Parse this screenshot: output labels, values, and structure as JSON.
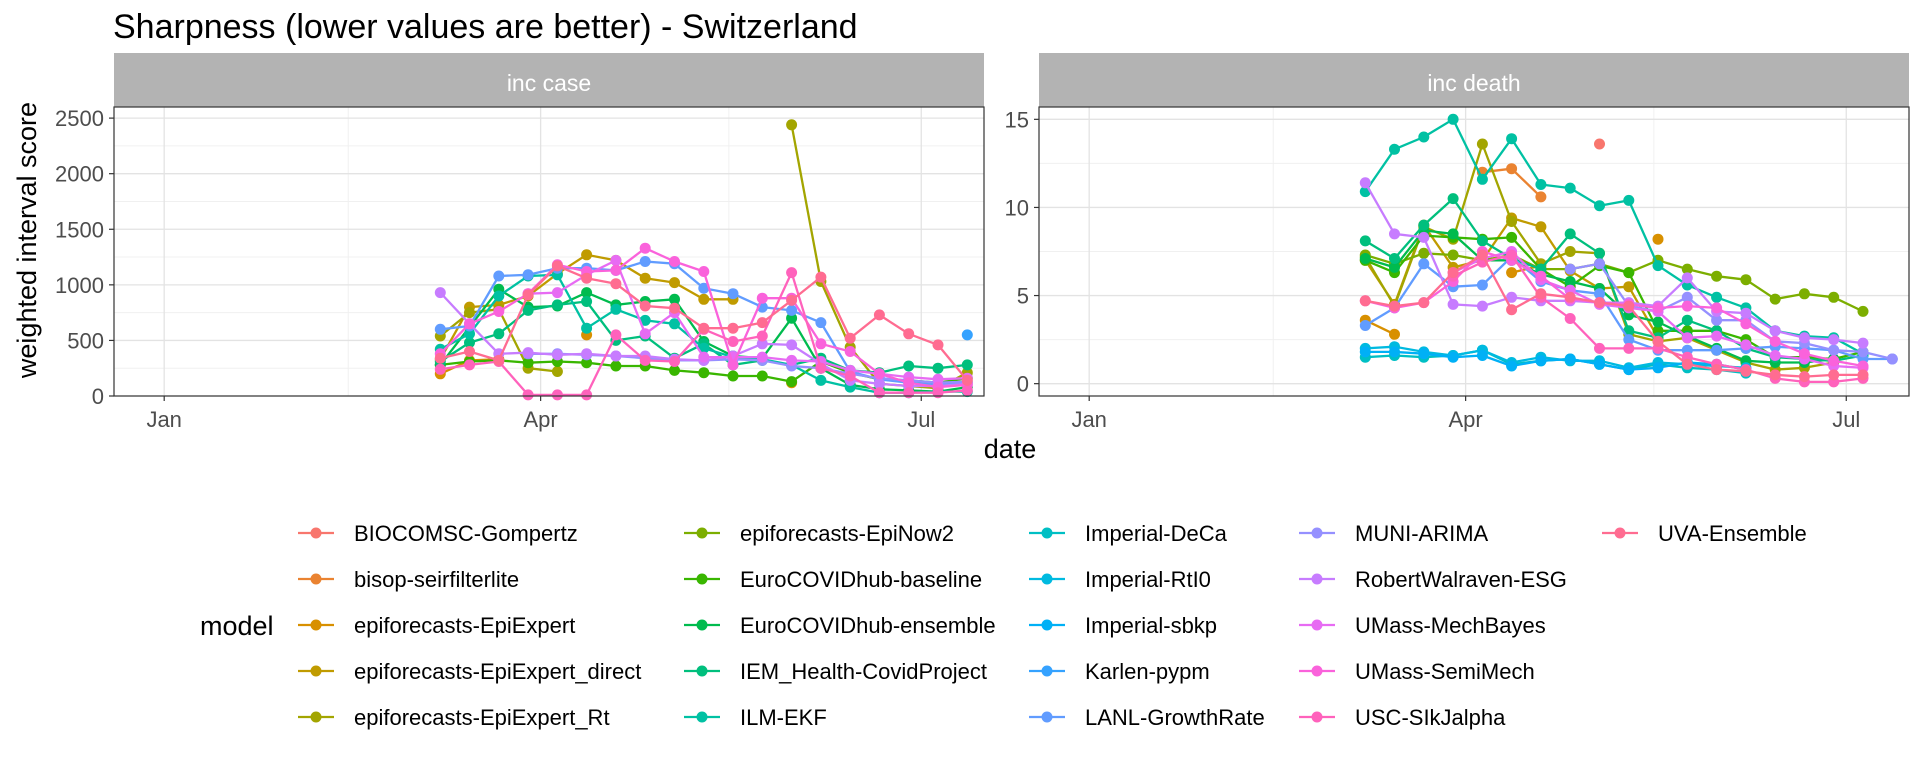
{
  "chart_data": {
    "type": "line",
    "title": "Sharpness (lower values are better) - Switzerland",
    "xlabel": "date",
    "ylabel": "weighted interval score",
    "legend_title": "model",
    "legend_position": "bottom",
    "grid": true,
    "x_tick_labels": [
      "Jan",
      "Apr",
      "Jul"
    ],
    "dates": [
      "2021-03-08",
      "2021-03-15",
      "2021-03-22",
      "2021-03-29",
      "2021-04-05",
      "2021-04-12",
      "2021-04-19",
      "2021-04-26",
      "2021-05-03",
      "2021-05-10",
      "2021-05-17",
      "2021-05-24",
      "2021-05-31",
      "2021-06-07",
      "2021-06-14",
      "2021-06-21",
      "2021-06-28",
      "2021-07-05",
      "2021-07-12"
    ],
    "models": [
      {
        "name": "BIOCOMSC-Gompertz",
        "color": "#F8766D"
      },
      {
        "name": "bisop-seirfilterlite",
        "color": "#EA8331"
      },
      {
        "name": "epiforecasts-EpiExpert",
        "color": "#D89000"
      },
      {
        "name": "epiforecasts-EpiExpert_direct",
        "color": "#C09B00"
      },
      {
        "name": "epiforecasts-EpiExpert_Rt",
        "color": "#A3A500"
      },
      {
        "name": "epiforecasts-EpiNow2",
        "color": "#7CAE00"
      },
      {
        "name": "EuroCOVIDhub-baseline",
        "color": "#39B600"
      },
      {
        "name": "EuroCOVIDhub-ensemble",
        "color": "#00BB4E"
      },
      {
        "name": "IEM_Health-CovidProject",
        "color": "#00BF7D"
      },
      {
        "name": "ILM-EKF",
        "color": "#00C1A3"
      },
      {
        "name": "Imperial-DeCa",
        "color": "#00BFC4"
      },
      {
        "name": "Imperial-RtI0",
        "color": "#00BAE0"
      },
      {
        "name": "Imperial-sbkp",
        "color": "#00B0F6"
      },
      {
        "name": "Karlen-pypm",
        "color": "#35A2FF"
      },
      {
        "name": "LANL-GrowthRate",
        "color": "#619CFF"
      },
      {
        "name": "MUNI-ARIMA",
        "color": "#9590FF"
      },
      {
        "name": "RobertWalraven-ESG",
        "color": "#C77CFF"
      },
      {
        "name": "UMass-MechBayes",
        "color": "#E76BF3"
      },
      {
        "name": "UMass-SemiMech",
        "color": "#FA62DB"
      },
      {
        "name": "USC-SIkJalpha",
        "color": "#FF62BC"
      },
      {
        "name": "UVA-Ensemble",
        "color": "#FF6C91"
      }
    ],
    "panels": [
      {
        "strip": "inc case",
        "y_range": [
          0,
          2600
        ],
        "y_ticks": [
          0,
          500,
          1000,
          1500,
          2000,
          2500
        ],
        "series": [
          {
            "model": "epiforecasts-EpiExpert",
            "values": [
              200,
              320,
              330,
              null,
              null,
              550,
              null,
              null,
              null,
              null,
              null,
              null,
              120,
              null,
              null,
              null,
              null,
              null,
              null
            ]
          },
          {
            "model": "epiforecasts-EpiExpert_direct",
            "values": [
              330,
              800,
              820,
              900,
              1100,
              1270,
              1220,
              1060,
              1020,
              870,
              870,
              null,
              null,
              null,
              null,
              null,
              null,
              null,
              null
            ]
          },
          {
            "model": "epiforecasts-EpiExpert_Rt",
            "values": [
              540,
              750,
              780,
              250,
              220,
              null,
              null,
              null,
              null,
              null,
              null,
              null,
              2440,
              1030,
              440,
              110,
              90,
              70,
              210
            ]
          },
          {
            "model": "EuroCOVIDhub-baseline",
            "values": [
              280,
              310,
              320,
              300,
              310,
              300,
              270,
              270,
              230,
              210,
              180,
              180,
              130,
              310,
              210,
              150,
              140,
              120,
              160
            ]
          },
          {
            "model": "EuroCOVIDhub-ensemble",
            "values": [
              280,
              620,
              960,
              800,
              810,
              930,
              820,
              850,
              870,
              490,
              360,
              340,
              700,
              250,
              100,
              60,
              50,
              40,
              80
            ]
          },
          {
            "model": "IEM_Health-CovidProject",
            "values": [
              310,
              480,
              560,
              770,
              820,
              850,
              500,
              540,
              340,
              470,
              280,
              320,
              280,
              340,
              230,
              210,
              270,
              250,
              280
            ]
          },
          {
            "model": "ILM-EKF",
            "values": [
              420,
              560,
              900,
              1080,
              1090,
              610,
              780,
              680,
              650,
              430,
              350,
              330,
              280,
              140,
              80,
              30,
              30,
              40,
              40
            ]
          },
          {
            "model": "Imperial-RtI0",
            "values": [
              null,
              null,
              null,
              null,
              null,
              null,
              null,
              null,
              null,
              null,
              null,
              null,
              null,
              null,
              null,
              null,
              null,
              null,
              null
            ]
          },
          {
            "model": "Karlen-pypm",
            "values": [
              null,
              null,
              null,
              null,
              null,
              null,
              null,
              null,
              null,
              null,
              null,
              null,
              null,
              null,
              null,
              null,
              null,
              null,
              550
            ]
          },
          {
            "model": "LANL-GrowthRate",
            "values": [
              600,
              630,
              1080,
              1090,
              1150,
              1150,
              1130,
              1210,
              1190,
              970,
              920,
              800,
              770,
              660,
              220,
              150,
              120,
              100,
              120
            ]
          },
          {
            "model": "MUNI-ARIMA",
            "values": [
              null,
              null,
              null,
              380,
              380,
              370,
              360,
              340,
              320,
              320,
              330,
              320,
              270,
              250,
              200,
              160,
              140,
              120,
              130
            ]
          },
          {
            "model": "RobertWalraven-ESG",
            "values": [
              930,
              650,
              380,
              390,
              370,
              380,
              360,
              360,
              330,
              320,
              360,
              470,
              460,
              290,
              140,
              110,
              90,
              90,
              110
            ]
          },
          {
            "model": "UMass-MechBayes",
            "values": [
              null,
              null,
              null,
              920,
              930,
              1090,
              1220,
              560,
              750,
              350,
              350,
              350,
              320,
              310,
              230,
              200,
              170,
              150,
              160
            ]
          },
          {
            "model": "UMass-SemiMech",
            "values": [
              380,
              650,
              760,
              920,
              1180,
              1120,
              1130,
              1330,
              1210,
              1120,
              280,
              880,
              880,
              470,
              400,
              200,
              120,
              80,
              100
            ]
          },
          {
            "model": "USC-SIkJalpha",
            "values": [
              240,
              280,
              310,
              10,
              10,
              10,
              550,
              320,
              310,
              600,
              490,
              540,
              1110,
              250,
              180,
              30,
              30,
              30,
              50
            ]
          },
          {
            "model": "UVA-Ensemble",
            "values": [
              340,
              400,
              320,
              910,
              1170,
              1060,
              1010,
              810,
              790,
              610,
              610,
              660,
              860,
              1070,
              520,
              730,
              560,
              460,
              140
            ]
          }
        ]
      },
      {
        "strip": "inc death",
        "y_range": [
          -0.7,
          15.7
        ],
        "y_ticks": [
          0,
          5,
          10,
          15
        ],
        "series": [
          {
            "model": "BIOCOMSC-Gompertz",
            "values": [
              null,
              null,
              null,
              null,
              null,
              null,
              null,
              null,
              13.6,
              null,
              null,
              null,
              null,
              null,
              null,
              null,
              null,
              null,
              null
            ]
          },
          {
            "model": "bisop-seirfilterlite",
            "values": [
              null,
              null,
              null,
              null,
              12.0,
              12.2,
              10.6,
              null,
              null,
              null,
              null,
              null,
              null,
              null,
              null,
              null,
              null,
              null,
              null
            ]
          },
          {
            "model": "epiforecasts-EpiExpert",
            "values": [
              3.6,
              2.8,
              null,
              null,
              null,
              6.3,
              6.7,
              null,
              null,
              null,
              8.2,
              null,
              null,
              null,
              null,
              null,
              null,
              null,
              null
            ]
          },
          {
            "model": "epiforecasts-EpiExpert_direct",
            "values": [
              7.0,
              4.5,
              9.0,
              6.6,
              7.0,
              9.4,
              8.9,
              6.4,
              5.4,
              5.5,
              2.6,
              null,
              null,
              null,
              null,
              null,
              null,
              null,
              null
            ]
          },
          {
            "model": "epiforecasts-EpiExpert_Rt",
            "values": [
              7.2,
              4.4,
              8.9,
              8.2,
              13.6,
              9.2,
              6.8,
              7.5,
              7.4,
              2.8,
              2.4,
              2.6,
              1.9,
              1.2,
              0.8,
              0.9,
              1.2,
              null,
              null
            ]
          },
          {
            "model": "epiforecasts-EpiNow2",
            "values": [
              7.3,
              6.8,
              7.4,
              7.3,
              7.0,
              7.3,
              6.5,
              6.5,
              6.8,
              6.3,
              7.0,
              6.5,
              6.1,
              5.9,
              4.8,
              5.1,
              4.9,
              4.1,
              null
            ]
          },
          {
            "model": "EuroCOVIDhub-baseline",
            "values": [
              7.0,
              6.3,
              8.4,
              8.3,
              8.2,
              8.3,
              6.5,
              5.5,
              6.7,
              6.3,
              3.0,
              3.0,
              3.0,
              2.5,
              1.5,
              1.5,
              1.4,
              1.8,
              null
            ]
          },
          {
            "model": "EuroCOVIDhub-ensemble",
            "values": [
              7.1,
              6.6,
              8.7,
              8.5,
              7.0,
              7.0,
              6.2,
              5.8,
              5.4,
              3.9,
              3.5,
              2.7,
              2.0,
              1.3,
              1.2,
              1.2,
              1.4,
              null,
              null
            ]
          },
          {
            "model": "IEM_Health-CovidProject",
            "values": [
              8.1,
              7.1,
              9.0,
              10.5,
              8.1,
              7.1,
              6.5,
              8.5,
              7.4,
              3.0,
              2.6,
              3.6,
              3.0,
              2.0,
              1.5,
              1.4,
              1.3,
              1.6,
              null
            ]
          },
          {
            "model": "ILM-EKF",
            "values": [
              10.9,
              13.3,
              14.0,
              15.0,
              11.6,
              13.9,
              11.3,
              11.1,
              10.1,
              10.4,
              6.7,
              5.6,
              4.9,
              4.3,
              3.0,
              2.7,
              2.6,
              1.7,
              null
            ]
          },
          {
            "model": "Imperial-DeCa",
            "values": [
              1.5,
              1.6,
              1.5,
              1.6,
              1.9,
              1.1,
              1.3,
              1.4,
              1.1,
              0.8,
              1.1,
              0.9,
              0.8,
              0.6,
              null,
              null,
              null,
              null,
              null
            ]
          },
          {
            "model": "Imperial-RtI0",
            "values": [
              2.0,
              2.1,
              1.8,
              1.6,
              1.9,
              1.2,
              1.5,
              1.3,
              1.3,
              0.9,
              1.2,
              1.1,
              1.0,
              0.9,
              null,
              null,
              null,
              null,
              null
            ]
          },
          {
            "model": "Imperial-sbkp",
            "values": [
              1.8,
              1.8,
              1.7,
              1.5,
              1.6,
              1.0,
              1.3,
              1.4,
              1.1,
              0.8,
              0.9,
              1.2,
              1.1,
              0.8,
              null,
              null,
              null,
              null,
              null
            ]
          },
          {
            "model": "LANL-GrowthRate",
            "values": [
              3.3,
              4.3,
              6.8,
              5.5,
              5.6,
              7.2,
              5.8,
              5.3,
              5.1,
              2.5,
              1.9,
              1.9,
              1.9,
              2.0,
              2.1,
              2.0,
              1.9,
              1.4,
              1.4
            ]
          },
          {
            "model": "MUNI-ARIMA",
            "values": [
              null,
              null,
              null,
              null,
              null,
              null,
              null,
              6.5,
              6.8,
              4.4,
              4.1,
              4.9,
              3.6,
              3.6,
              2.4,
              2.3,
              1.9,
              1.8,
              1.4
            ]
          },
          {
            "model": "RobertWalraven-ESG",
            "values": [
              11.4,
              8.5,
              8.3,
              4.5,
              4.4,
              4.9,
              4.7,
              4.7,
              4.6,
              4.6,
              4.4,
              6.0,
              4.1,
              4.0,
              3.0,
              2.6,
              2.5,
              2.3,
              null
            ]
          },
          {
            "model": "UMass-MechBayes",
            "values": [
              null,
              null,
              null,
              6.3,
              7.1,
              7.5,
              5.9,
              5.3,
              4.5,
              4.3,
              4.1,
              2.6,
              2.7,
              2.2,
              1.6,
              1.4,
              1.0,
              0.9,
              null
            ]
          },
          {
            "model": "UMass-SemiMech",
            "values": [
              4.7,
              4.3,
              4.6,
              5.8,
              7.5,
              7.0,
              6.1,
              4.8,
              4.6,
              4.5,
              4.3,
              4.4,
              4.3,
              3.4,
              2.4,
              1.7,
              1.3,
              1.0,
              null
            ]
          },
          {
            "model": "USC-SIkJalpha",
            "values": [
              null,
              null,
              null,
              6.1,
              6.9,
              7.3,
              4.9,
              3.7,
              2.0,
              2.0,
              2.0,
              1.5,
              1.1,
              0.8,
              0.3,
              0.1,
              0.1,
              0.3,
              null
            ]
          },
          {
            "model": "UVA-Ensemble",
            "values": [
              4.7,
              4.4,
              4.6,
              6.3,
              7.3,
              4.2,
              5.1,
              4.9,
              4.6,
              4.4,
              2.4,
              1.1,
              0.8,
              0.7,
              0.5,
              0.4,
              0.5,
              0.5,
              null
            ]
          }
        ]
      }
    ]
  }
}
